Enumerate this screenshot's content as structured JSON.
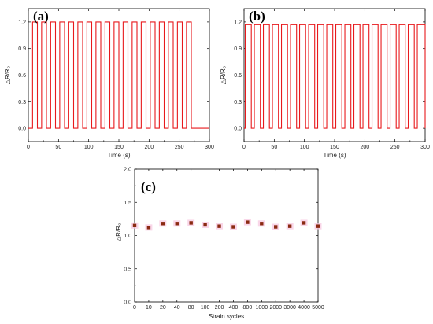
{
  "chart_data": [
    {
      "type": "line",
      "panel_label": "(a)",
      "xlabel": "Time (s)",
      "ylabel": "△R/R₀",
      "xlim": [
        0,
        300
      ],
      "ylim": [
        -0.15,
        1.35
      ],
      "xticks": [
        "0",
        "50",
        "100",
        "150",
        "200",
        "250",
        "300"
      ],
      "yticks": [
        "0.0",
        "0.3",
        "0.6",
        "0.9",
        "1.2"
      ],
      "color": "#e8191c",
      "series": [
        {
          "high": 1.2,
          "low": 0.0,
          "pulses": [
            [
              7,
              15
            ],
            [
              22,
              30
            ],
            [
              37,
              45
            ],
            [
              52,
              60
            ],
            [
              67,
              75
            ],
            [
              82,
              90
            ],
            [
              97,
              105
            ],
            [
              112,
              120
            ],
            [
              127,
              135
            ],
            [
              142,
              150
            ],
            [
              157,
              165
            ],
            [
              172,
              180
            ],
            [
              187,
              195
            ],
            [
              202,
              210
            ],
            [
              217,
              225
            ],
            [
              232,
              240
            ],
            [
              247,
              255
            ],
            [
              262,
              270
            ]
          ],
          "x_end": 300
        }
      ]
    },
    {
      "type": "line",
      "panel_label": "(b)",
      "xlabel": "Time (s)",
      "ylabel": "△R/R₀",
      "xlim": [
        0,
        300
      ],
      "ylim": [
        -0.15,
        1.35
      ],
      "xticks": [
        "0",
        "50",
        "100",
        "150",
        "200",
        "250",
        "300"
      ],
      "yticks": [
        "0.0",
        "0.3",
        "0.6",
        "0.9",
        "1.2"
      ],
      "color": "#e8191c",
      "series": [
        {
          "high": 1.17,
          "low": 0.0,
          "pulses": [
            [
              2,
              12
            ],
            [
              17,
              27
            ],
            [
              32,
              42
            ],
            [
              47,
              57
            ],
            [
              62,
              72
            ],
            [
              77,
              87
            ],
            [
              92,
              102
            ],
            [
              107,
              117
            ],
            [
              122,
              132
            ],
            [
              137,
              147
            ],
            [
              152,
              162
            ],
            [
              167,
              177
            ],
            [
              182,
              192
            ],
            [
              197,
              207
            ],
            [
              212,
              222
            ],
            [
              227,
              237
            ],
            [
              242,
              252
            ],
            [
              257,
              267
            ],
            [
              272,
              282
            ],
            [
              287,
              300
            ]
          ],
          "x_end": 300
        }
      ]
    },
    {
      "type": "scatter",
      "panel_label": "(c)",
      "xlabel": "Strain sycles",
      "ylabel": "△R/R₀",
      "ylim": [
        0.0,
        2.0
      ],
      "categories": [
        "0",
        "10",
        "20",
        "40",
        "80",
        "100",
        "200",
        "400",
        "800",
        "1000",
        "2000",
        "3000",
        "4000",
        "5000"
      ],
      "yticks": [
        "0.0",
        "0.5",
        "1.0",
        "1.5",
        "2.0"
      ],
      "values": [
        1.15,
        1.12,
        1.18,
        1.18,
        1.19,
        1.16,
        1.14,
        1.13,
        1.2,
        1.18,
        1.13,
        1.14,
        1.19,
        1.14
      ],
      "color": "#8b2a12",
      "halo_color": "#f7c8e0"
    }
  ]
}
